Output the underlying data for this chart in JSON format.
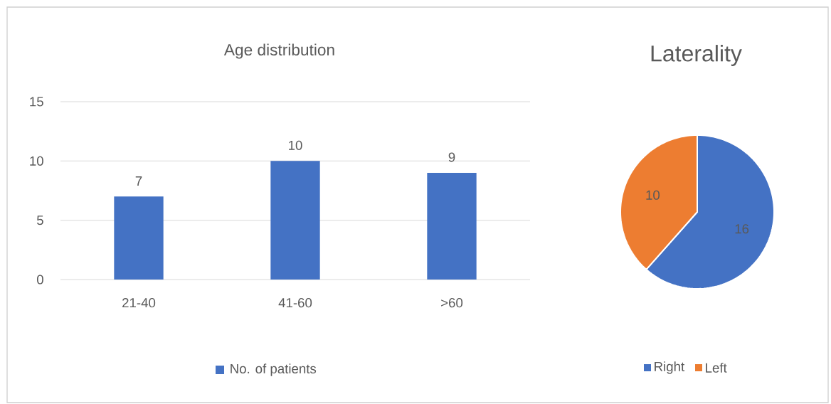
{
  "chart_data": [
    {
      "type": "bar",
      "title": "Age distribution",
      "categories": [
        "21-40",
        "41-60",
        ">60"
      ],
      "series": [
        {
          "name": "No. of patients",
          "color": "#4472c4",
          "values": [
            7,
            10,
            9
          ]
        }
      ],
      "ylim": [
        0,
        15
      ],
      "yticks": [
        0,
        5,
        10,
        15
      ],
      "grid": "y",
      "data_labels": true,
      "legend": "bottom"
    },
    {
      "type": "pie",
      "title": "Laterality",
      "categories": [
        "Right",
        "Left"
      ],
      "values": [
        16,
        10
      ],
      "colors": [
        "#4472c4",
        "#ed7d31"
      ],
      "data_labels": true,
      "legend": "bottom"
    }
  ]
}
